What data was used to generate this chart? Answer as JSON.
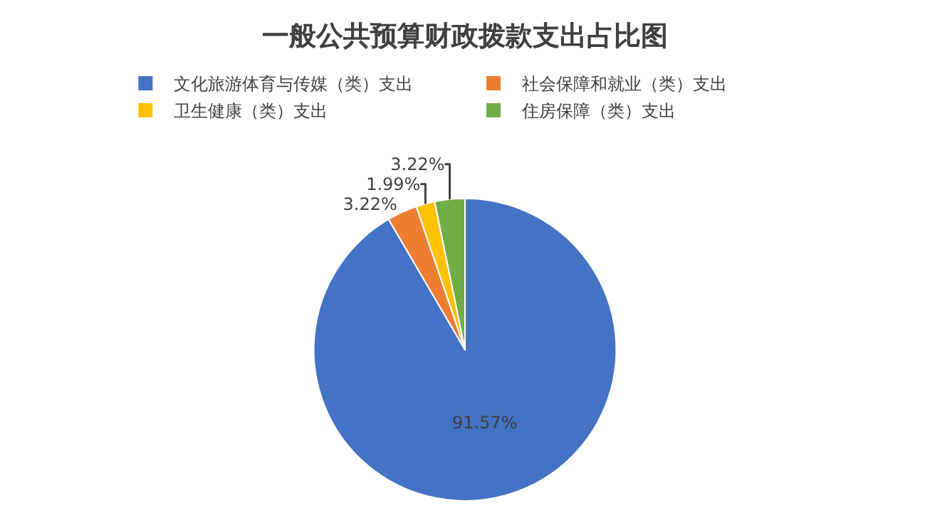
{
  "chart_data": {
    "type": "pie",
    "title": "一般公共预算财政拨款支出占比图",
    "categories": [
      "文化旅游体育与传媒（类）支出",
      "社会保障和就业（类）支出",
      "卫生健康（类）支出",
      "住房保障（类）支出"
    ],
    "values": [
      91.57,
      3.22,
      1.99,
      3.22
    ],
    "value_labels": [
      "91.57%",
      "3.22%",
      "1.99%",
      "3.22%"
    ],
    "colors": [
      "#4472c4",
      "#ed7d31",
      "#ffc000",
      "#70ad47"
    ],
    "legend": "top"
  }
}
